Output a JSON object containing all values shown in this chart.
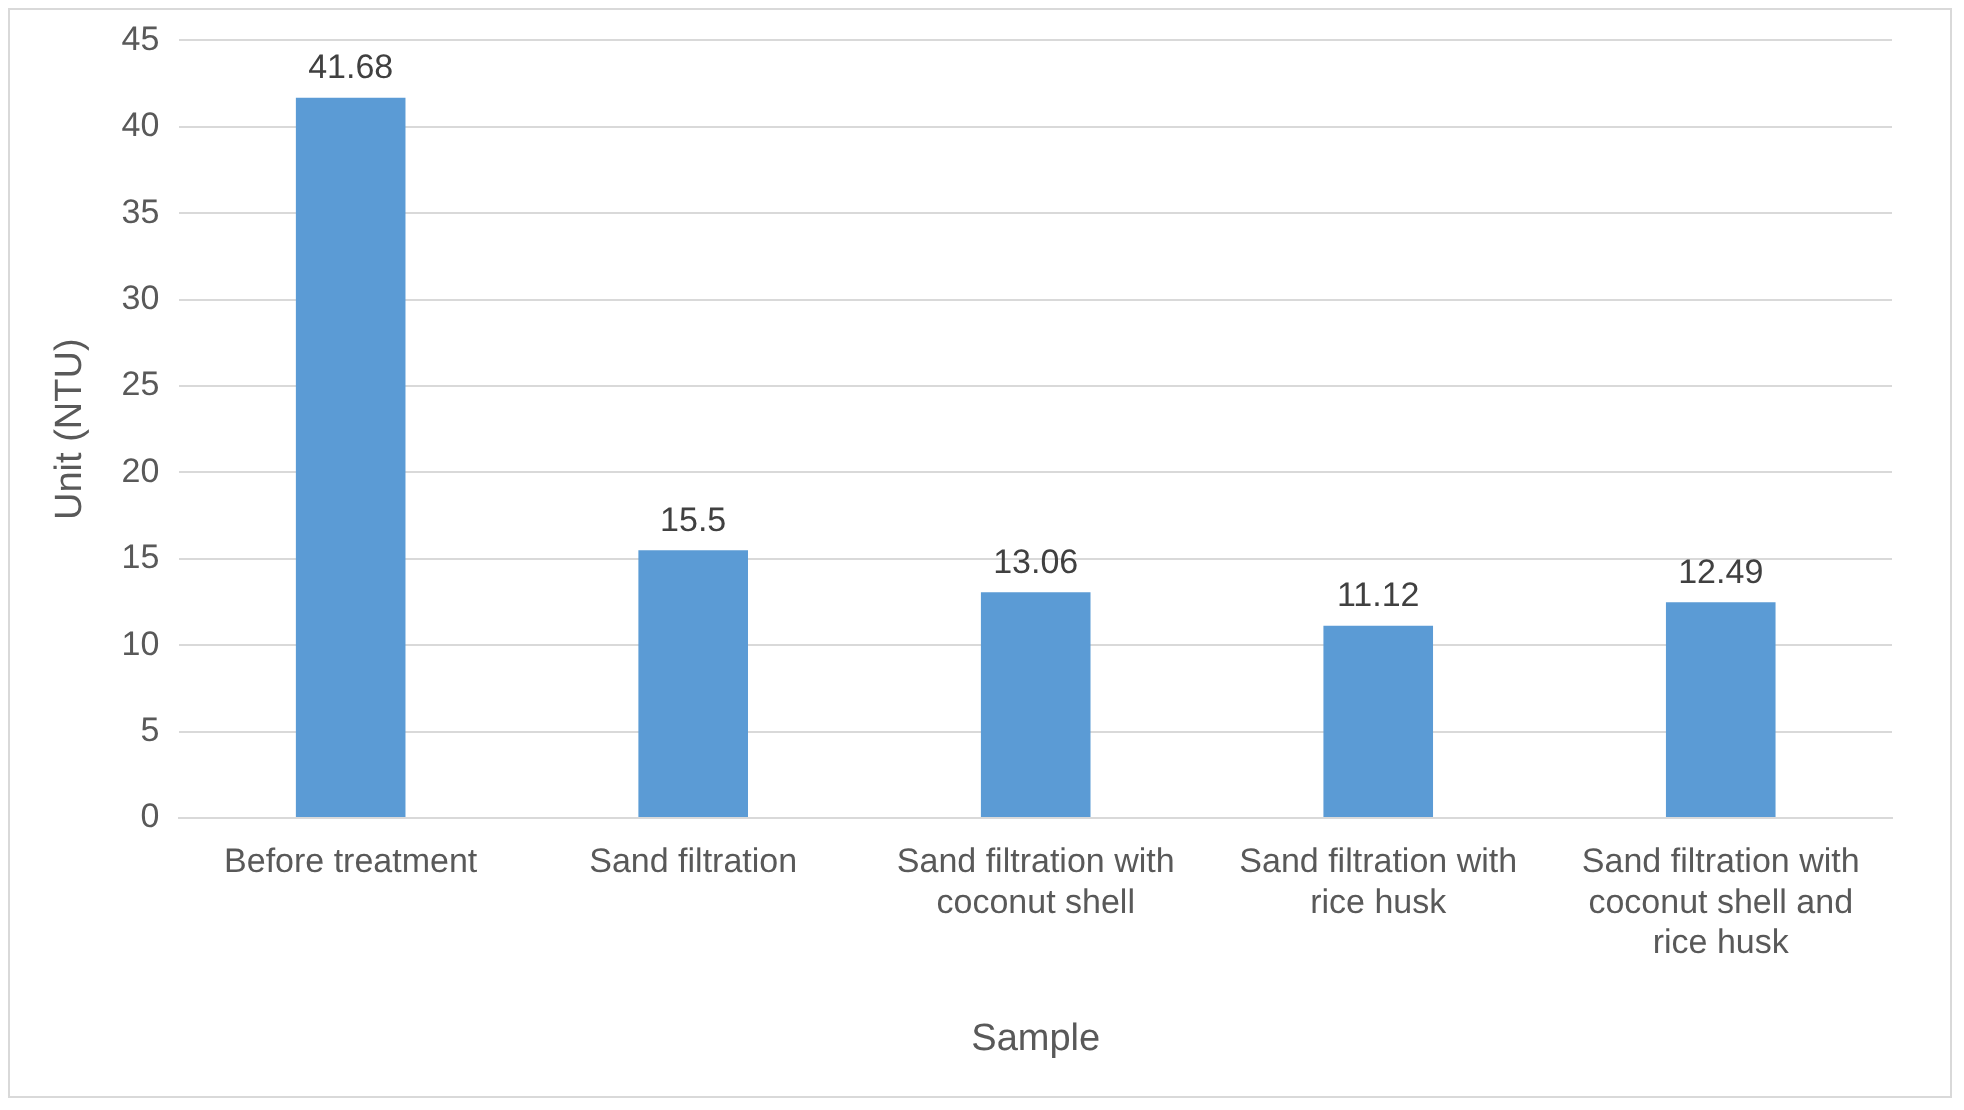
{
  "chart_data": {
    "type": "bar",
    "xlabel": "Sample",
    "ylabel": "Unit (NTU)",
    "categories": [
      "Before treatment",
      "Sand filtration",
      "Sand filtration with coconut shell",
      "Sand filtration with rice husk",
      "Sand filtration with coconut shell and rice husk"
    ],
    "values": [
      41.68,
      15.5,
      13.06,
      11.12,
      12.49
    ],
    "color": "#5b9bd5",
    "ylim": [
      0,
      45
    ],
    "yticks": [
      0,
      5,
      10,
      15,
      20,
      25,
      30,
      35,
      40,
      45
    ],
    "grid": "y",
    "data_labels": true,
    "legend": false
  }
}
